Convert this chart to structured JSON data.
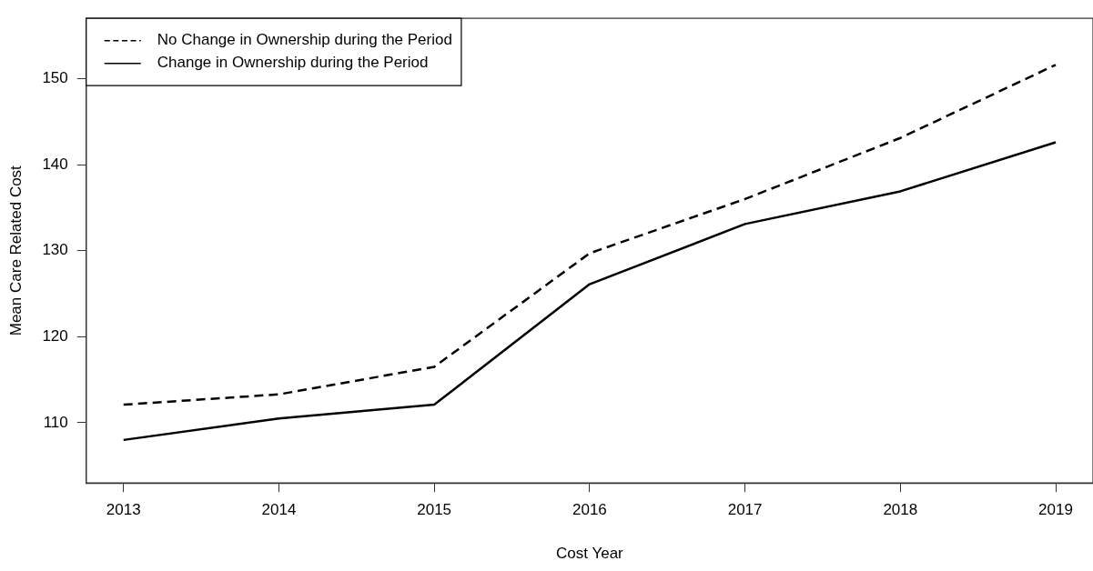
{
  "chart_data": {
    "type": "line",
    "xlabel": "Cost Year",
    "ylabel": "Mean Care Related Cost",
    "x": [
      2013,
      2014,
      2015,
      2016,
      2017,
      2018,
      2019
    ],
    "series": [
      {
        "name": "No Change in Ownership during the Period",
        "color": "#000000",
        "line_style": "dashed",
        "values": [
          112.1,
          113.3,
          116.5,
          129.7,
          136.0,
          143.1,
          151.6
        ]
      },
      {
        "name": "Change in Ownership during the Period",
        "color": "#000000",
        "line_style": "solid",
        "values": [
          108.0,
          110.5,
          112.1,
          126.1,
          133.1,
          136.9,
          142.6
        ]
      }
    ],
    "xlim": [
      2012.76,
      2019.24
    ],
    "xticks": [
      2013,
      2014,
      2015,
      2016,
      2017,
      2018,
      2019
    ],
    "ylim": [
      103,
      157
    ],
    "yticks": [
      110,
      120,
      130,
      140,
      150
    ],
    "grid": false,
    "legend": "top left",
    "marker": "none"
  }
}
